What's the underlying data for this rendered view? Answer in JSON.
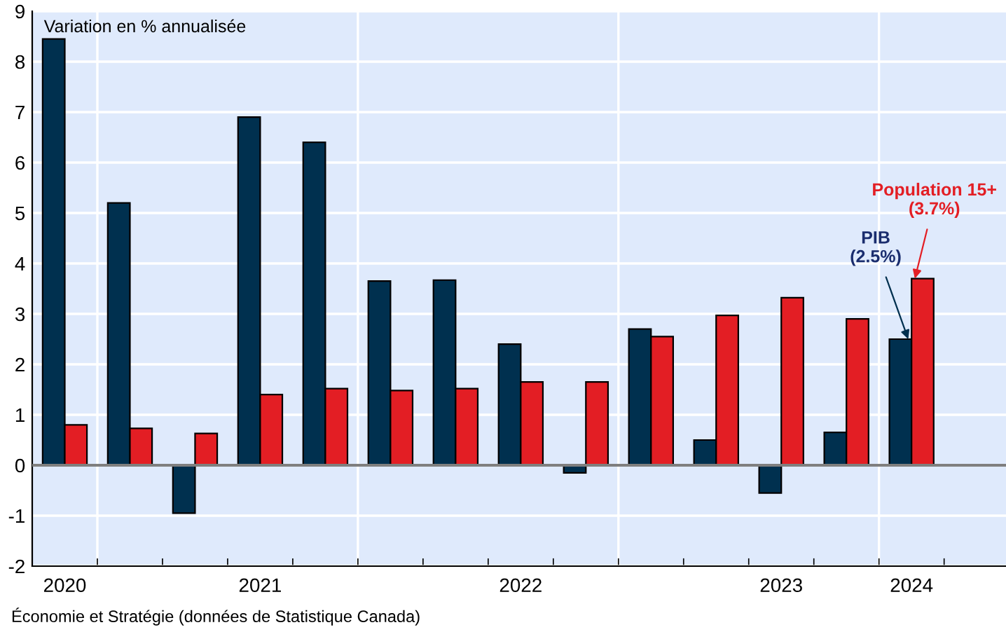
{
  "chart_data": {
    "type": "bar",
    "ylabel": "Variation en % annualisée",
    "categories": [
      "2020",
      null,
      null,
      "2021",
      null,
      null,
      null,
      "2022",
      null,
      null,
      null,
      "2023",
      null,
      "2024"
    ],
    "series": [
      {
        "color": "#00304f",
        "values": [
          8.45,
          5.2,
          -0.95,
          6.9,
          6.4,
          3.65,
          3.67,
          2.4,
          -0.15,
          2.7,
          0.5,
          -0.55,
          0.65,
          2.5
        ]
      },
      {
        "color": "#e31e24",
        "values": [
          0.8,
          0.73,
          0.63,
          1.4,
          1.52,
          1.48,
          1.52,
          1.65,
          1.65,
          2.55,
          2.97,
          3.32,
          2.9,
          3.7
        ]
      }
    ],
    "ylim": [
      -2,
      9
    ],
    "yticks": [
      -2,
      -1,
      0,
      1,
      2,
      3,
      4,
      5,
      6,
      7,
      8,
      9
    ],
    "grid": true,
    "annotations": [
      {
        "text": "PIB\n(2.5%)",
        "x": "2024",
        "y": 2.5
      },
      {
        "text": "Population 15+\n(3.7%)",
        "x": "2024",
        "y": 3.7
      },
      "Économie et Stratégie (données de Statistique Canada)"
    ]
  }
}
